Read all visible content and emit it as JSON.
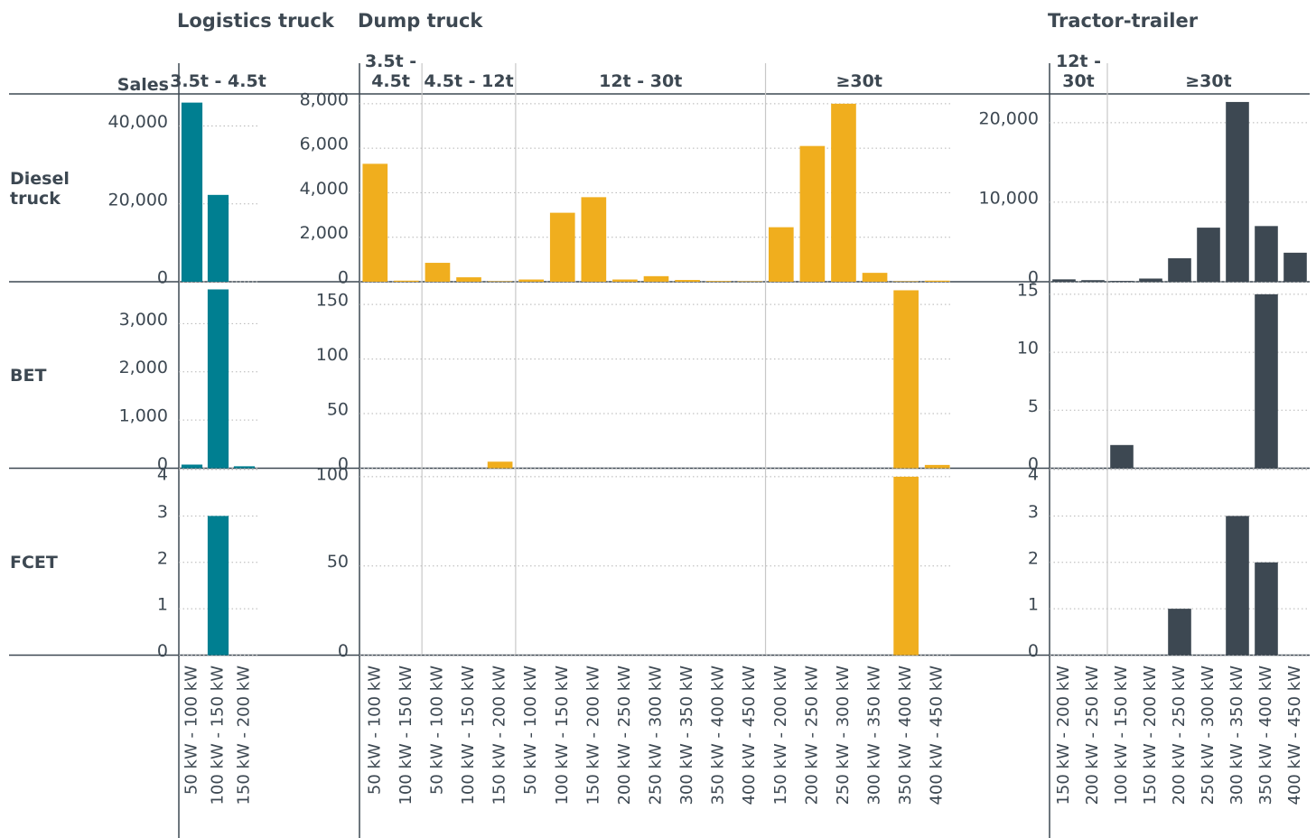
{
  "y_label": "Sales",
  "rows": [
    "Diesel truck",
    "BET",
    "FCET"
  ],
  "chart_data": [
    {
      "type": "bar",
      "title": "Logistics truck",
      "color": "#007f91",
      "categories": [
        "50 kW - 100 kW",
        "100 kW - 150 kW",
        "150 kW - 200 kW"
      ],
      "groups": [
        {
          "label": "3.5t - 4.5t",
          "size": 3
        }
      ],
      "panels": [
        {
          "values": [
            46000,
            22300,
            0
          ],
          "ylim": [
            0,
            48000
          ],
          "yticks": [
            0,
            {
              "value": 20000,
              "label": "20,000"
            },
            {
              "value": 40000,
              "label": "40,000"
            }
          ]
        },
        {
          "values": [
            75,
            3710,
            40
          ],
          "ylim": [
            0,
            3850
          ],
          "yticks": [
            0,
            {
              "value": 1000,
              "label": "1,000"
            },
            {
              "value": 2000,
              "label": "2,000"
            },
            {
              "value": 3000,
              "label": "3,000"
            }
          ]
        },
        {
          "values": [
            0,
            3,
            0
          ],
          "ylim": [
            0,
            4
          ],
          "yticks": [
            0,
            1,
            2,
            3,
            4
          ]
        }
      ]
    },
    {
      "type": "bar",
      "title": "Dump truck",
      "color": "#f0ae1e",
      "categories": [
        "50 kW - 100 kW",
        "100 kW - 150 kW",
        "50 kW - 100 kW",
        "100 kW - 150 kW",
        "150 kW - 200 kW",
        "50 kW - 100 kW",
        "100 kW - 150 kW",
        "150 kW - 200 kW",
        "200 kW - 250 kW",
        "250 kW - 300 kW",
        "300 kW - 350 kW",
        "350 kW - 400 kW",
        "400 kW - 450 kW",
        "150 kW - 200 kW",
        "200 kW - 250 kW",
        "250 kW - 300 kW",
        "300 kW - 350 kW",
        "350 kW - 400 kW",
        "400 kW - 450 kW"
      ],
      "groups": [
        {
          "label": "3.5t - 4.5t",
          "size": 2
        },
        {
          "label": "4.5t - 12t",
          "size": 3
        },
        {
          "label": "12t - 30t",
          "size": 8
        },
        {
          "label": "≥30t",
          "size": 6
        }
      ],
      "panels": [
        {
          "values": [
            5300,
            50,
            850,
            200,
            20,
            100,
            3100,
            3800,
            100,
            250,
            80,
            30,
            20,
            2450,
            6100,
            8000,
            400,
            20,
            50
          ],
          "ylim": [
            0,
            8400
          ],
          "yticks": [
            0,
            {
              "value": 2000,
              "label": "2,000"
            },
            {
              "value": 4000,
              "label": "4,000"
            },
            {
              "value": 6000,
              "label": "6,000"
            },
            {
              "value": 8000,
              "label": "8,000"
            }
          ]
        },
        {
          "values": [
            0,
            0,
            0,
            0,
            6,
            0,
            0,
            0,
            0,
            0,
            0,
            0,
            0,
            0,
            0,
            0,
            0,
            163,
            3
          ],
          "ylim": [
            0,
            170
          ],
          "yticks": [
            0,
            50,
            100,
            150
          ]
        },
        {
          "values": [
            0,
            0,
            0,
            0,
            0,
            0,
            0,
            0,
            0,
            0,
            0,
            0,
            0,
            0,
            0,
            0,
            0,
            100,
            0
          ],
          "ylim": [
            0,
            104
          ],
          "yticks": [
            0,
            50,
            100
          ]
        }
      ]
    },
    {
      "type": "bar",
      "title": "Tractor-trailer",
      "color": "#3d4852",
      "categories": [
        "150 kW - 200 kW",
        "200 kW - 250 kW",
        "100 kW - 150 kW",
        "150 kW - 200 kW",
        "200 kW - 250 kW",
        "250 kW - 300 kW",
        "300 kW - 350 kW",
        "350 kW - 400 kW",
        "400 kW - 450 kW"
      ],
      "groups": [
        {
          "label": "12t - 30t",
          "size": 2
        },
        {
          "label": "≥30t",
          "size": 7
        }
      ],
      "panels": [
        {
          "values": [
            300,
            200,
            100,
            400,
            2950,
            6800,
            22600,
            7000,
            3650
          ],
          "ylim": [
            0,
            23500
          ],
          "yticks": [
            0,
            {
              "value": 10000,
              "label": "10,000"
            },
            {
              "value": 20000,
              "label": "20,000"
            }
          ]
        },
        {
          "values": [
            0,
            0,
            2,
            0,
            0,
            0,
            0,
            15,
            0
          ],
          "ylim": [
            0,
            16
          ],
          "yticks": [
            0,
            5,
            10,
            15
          ]
        },
        {
          "values": [
            0,
            0,
            0,
            0,
            1,
            0,
            3,
            2,
            0
          ],
          "ylim": [
            0,
            4
          ],
          "yticks": [
            0,
            1,
            2,
            3,
            4
          ]
        }
      ]
    }
  ]
}
